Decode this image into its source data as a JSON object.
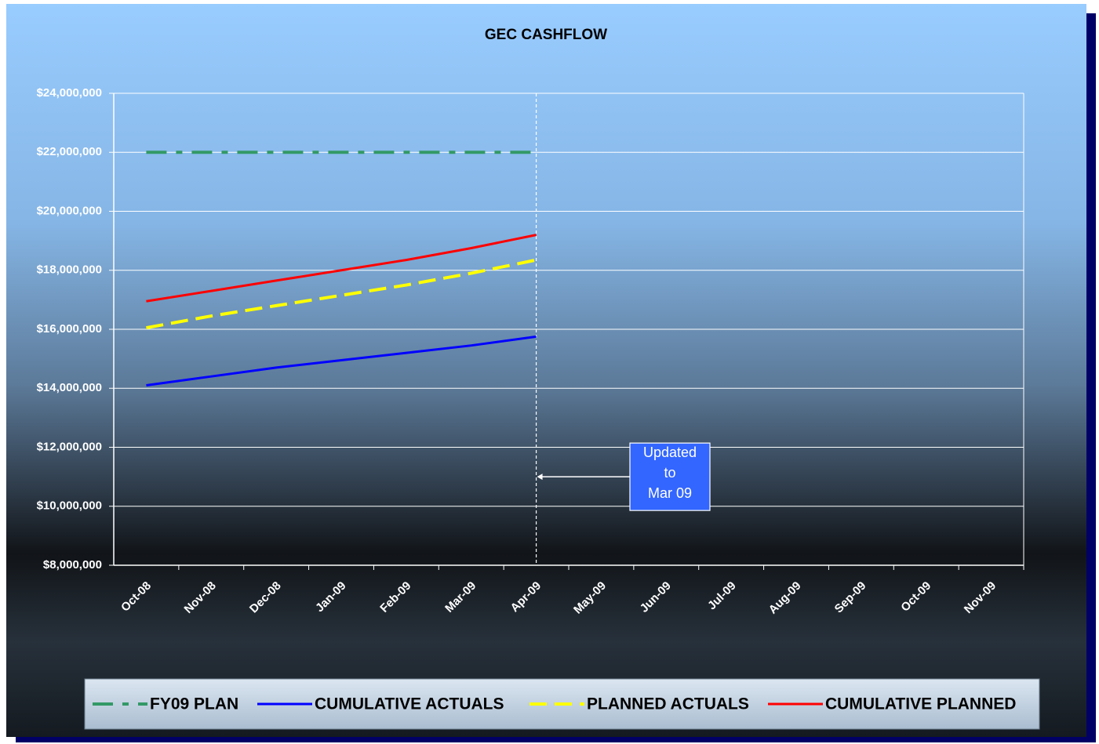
{
  "chart_data": {
    "type": "line",
    "title": "GEC CASHFLOW",
    "categories": [
      "Oct-08",
      "Nov-08",
      "Dec-08",
      "Jan-09",
      "Feb-09",
      "Mar-09",
      "Apr-09",
      "May-09",
      "Jun-09",
      "Jul-09",
      "Aug-09",
      "Sep-09",
      "Oct-09",
      "Nov-09"
    ],
    "series": [
      {
        "name": "FY09 PLAN",
        "color": "#339966",
        "dash": "dashdot",
        "values": [
          22000000,
          22000000,
          22000000,
          22000000,
          22000000,
          22000000,
          22000000,
          null,
          null,
          null,
          null,
          null,
          null,
          null
        ]
      },
      {
        "name": "CUMULATIVE ACTUALS",
        "color": "#0000ff",
        "dash": "solid",
        "values": [
          14100000,
          14400000,
          14700000,
          14950000,
          15200000,
          15450000,
          15750000,
          null,
          null,
          null,
          null,
          null,
          null,
          null
        ]
      },
      {
        "name": "PLANNED ACTUALS",
        "color": "#ffff00",
        "dash": "dashed",
        "values": [
          16050000,
          16450000,
          16800000,
          17150000,
          17500000,
          17900000,
          18350000,
          null,
          null,
          null,
          null,
          null,
          null,
          null
        ]
      },
      {
        "name": "CUMULATIVE PLANNED",
        "color": "#ff0000",
        "dash": "solid",
        "values": [
          16950000,
          17300000,
          17650000,
          18000000,
          18350000,
          18750000,
          19200000,
          null,
          null,
          null,
          null,
          null,
          null,
          null
        ]
      }
    ],
    "ylim": [
      8000000,
      24000000
    ],
    "yticks": [
      {
        "value": 8000000,
        "label": "$8,000,000"
      },
      {
        "value": 10000000,
        "label": "$10,000,000"
      },
      {
        "value": 12000000,
        "label": "$12,000,000"
      },
      {
        "value": 14000000,
        "label": "$14,000,000"
      },
      {
        "value": 16000000,
        "label": "$16,000,000"
      },
      {
        "value": 18000000,
        "label": "$18,000,000"
      },
      {
        "value": 20000000,
        "label": "$20,000,000"
      },
      {
        "value": 22000000,
        "label": "$22,000,000"
      },
      {
        "value": 24000000,
        "label": "$24,000,000"
      }
    ],
    "grid": true,
    "legend": "bottom",
    "annotation": {
      "lines": [
        "Updated",
        "to",
        "Mar 09"
      ],
      "category": "Apr-09",
      "value": 11000000
    }
  }
}
